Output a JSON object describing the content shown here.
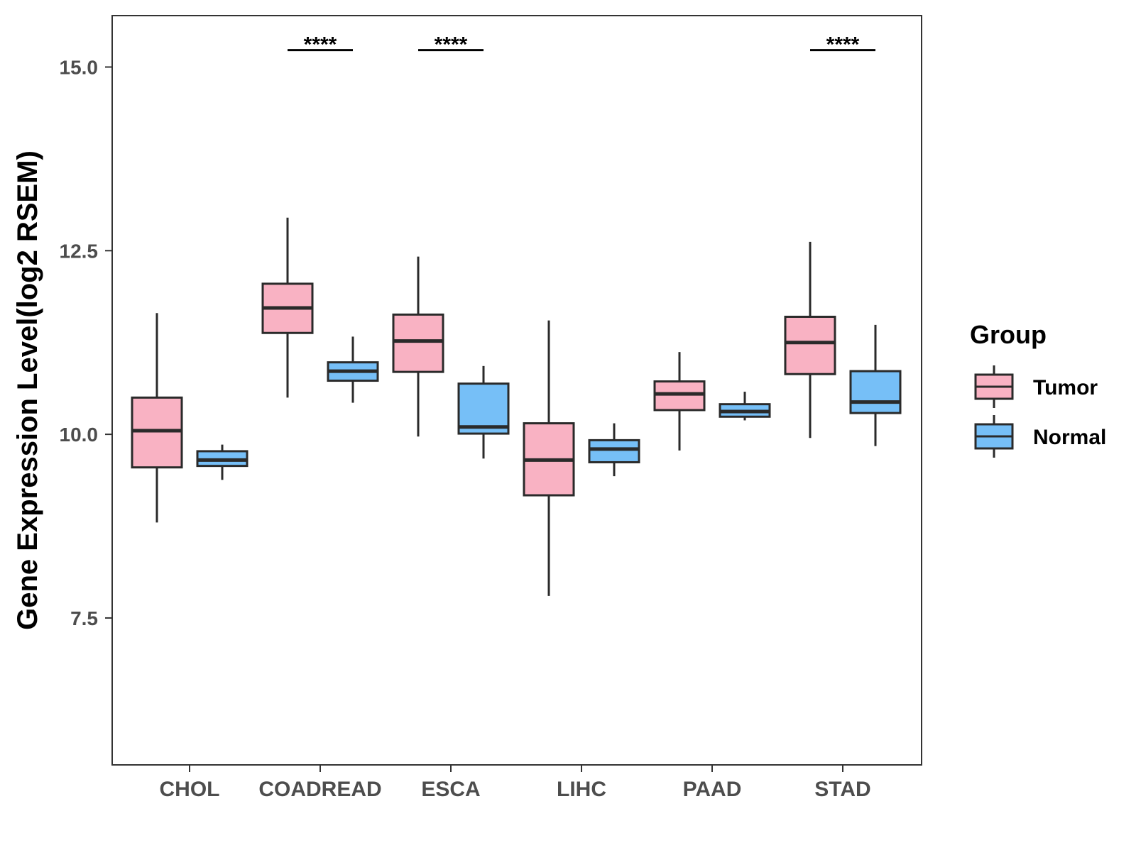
{
  "chart_data": {
    "type": "boxplot",
    "title": "",
    "xlabel": "",
    "ylabel": "Gene Expression Level(log2 RSEM)",
    "ylim": [
      5.5,
      15.7
    ],
    "yticks": [
      7.5,
      10.0,
      12.5,
      15.0
    ],
    "ytick_labels": [
      "7.5",
      "10.0",
      "12.5",
      "15.0"
    ],
    "grid": false,
    "legend_position": "right",
    "categories": [
      "CHOL",
      "COADREAD",
      "ESCA",
      "LIHC",
      "PAAD",
      "STAD"
    ],
    "legend": {
      "title": "Group",
      "entries": [
        "Tumor",
        "Normal"
      ]
    },
    "colors": {
      "Tumor": "#f9b2c3",
      "Normal": "#76bff7",
      "stroke": "#2a2a2a"
    },
    "series": [
      {
        "name": "Tumor",
        "boxes": [
          {
            "min": 8.8,
            "q1": 9.55,
            "median": 10.05,
            "q3": 10.5,
            "max": 11.65
          },
          {
            "min": 10.5,
            "q1": 11.38,
            "median": 11.72,
            "q3": 12.05,
            "max": 12.95
          },
          {
            "min": 9.97,
            "q1": 10.85,
            "median": 11.27,
            "q3": 11.63,
            "max": 12.42
          },
          {
            "min": 7.8,
            "q1": 9.17,
            "median": 9.65,
            "q3": 10.15,
            "max": 11.55
          },
          {
            "min": 9.78,
            "q1": 10.33,
            "median": 10.55,
            "q3": 10.72,
            "max": 11.12
          },
          {
            "min": 9.95,
            "q1": 10.82,
            "median": 11.25,
            "q3": 11.6,
            "max": 12.62
          }
        ]
      },
      {
        "name": "Normal",
        "boxes": [
          {
            "min": 9.38,
            "q1": 9.57,
            "median": 9.65,
            "q3": 9.77,
            "max": 9.86
          },
          {
            "min": 10.43,
            "q1": 10.73,
            "median": 10.86,
            "q3": 10.98,
            "max": 11.33
          },
          {
            "min": 9.67,
            "q1": 10.01,
            "median": 10.1,
            "q3": 10.69,
            "max": 10.93
          },
          {
            "min": 9.43,
            "q1": 9.62,
            "median": 9.8,
            "q3": 9.92,
            "max": 10.15
          },
          {
            "min": 10.19,
            "q1": 10.24,
            "median": 10.31,
            "q3": 10.41,
            "max": 10.58
          },
          {
            "min": 9.84,
            "q1": 10.29,
            "median": 10.44,
            "q3": 10.86,
            "max": 11.49
          }
        ]
      }
    ],
    "significance": [
      {
        "category": "COADREAD",
        "label": "****",
        "y": 15.23
      },
      {
        "category": "ESCA",
        "label": "****",
        "y": 15.23
      },
      {
        "category": "STAD",
        "label": "****",
        "y": 15.23
      }
    ]
  }
}
